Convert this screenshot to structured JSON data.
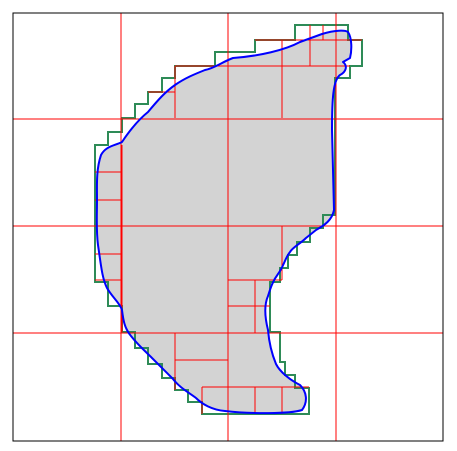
{
  "diagram": {
    "colors": {
      "background": "#ffffff",
      "region_fill": "#d3d3d3",
      "boundary_curve": "#0000ff",
      "coarse_grid": "#ff0000",
      "fine_cells": "#ff0000",
      "cell_outline": "#2e8b57",
      "frame": "#000000"
    }
  }
}
